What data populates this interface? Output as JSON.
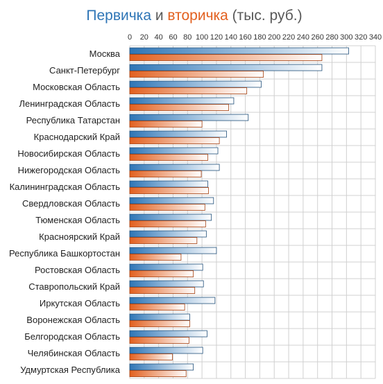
{
  "chart_data": {
    "type": "bar",
    "orientation": "horizontal",
    "title": {
      "part1": "Первичка",
      "part2": " и ",
      "part3": "вторичка",
      "part4": " (тыс. руб.)"
    },
    "colors": {
      "primary": "#2e75b6",
      "secondary": "#e2601f",
      "title_primary": "#2e75b6",
      "title_secondary": "#e2601f",
      "title_text": "#595959",
      "grid": "#d0d0d0",
      "bar_outline_primary": "#1f4e79",
      "bar_outline_secondary": "#a33d0c"
    },
    "x_ticks": [
      "0",
      "20",
      "40",
      "60",
      "80",
      "100",
      "120",
      "140",
      "160",
      "180",
      "200",
      "220",
      "240",
      "260",
      "280",
      "300",
      "320",
      "340"
    ],
    "xlim": [
      0,
      340
    ],
    "grid": true,
    "categories": [
      "Москва",
      "Санкт-Петербург",
      "Московская Область",
      "Ленинградская Область",
      "Республика Татарстан",
      "Краснодарский Край",
      "Новосибирская Область",
      "Нижегородская Область",
      "Калининградская Область",
      "Свердловская Область",
      "Тюменская Область",
      "Красноярский Край",
      "Республика Башкортостан",
      "Ростовская Область",
      "Ставропольский Край",
      "Иркутская Область",
      "Воронежская Область",
      "Белгородская Область",
      "Челябинская Область",
      "Удмуртская Республика"
    ],
    "series": [
      {
        "name": "Первичка",
        "values": [
          303,
          266,
          182,
          144,
          164,
          134,
          122,
          124,
          108,
          116,
          113,
          106,
          120,
          101,
          102,
          118,
          83,
          107,
          101,
          88
        ]
      },
      {
        "name": "вторичка",
        "values": [
          266,
          185,
          162,
          137,
          100,
          124,
          108,
          99,
          109,
          104,
          105,
          93,
          71,
          88,
          90,
          76,
          83,
          82,
          59,
          78
        ]
      }
    ]
  }
}
